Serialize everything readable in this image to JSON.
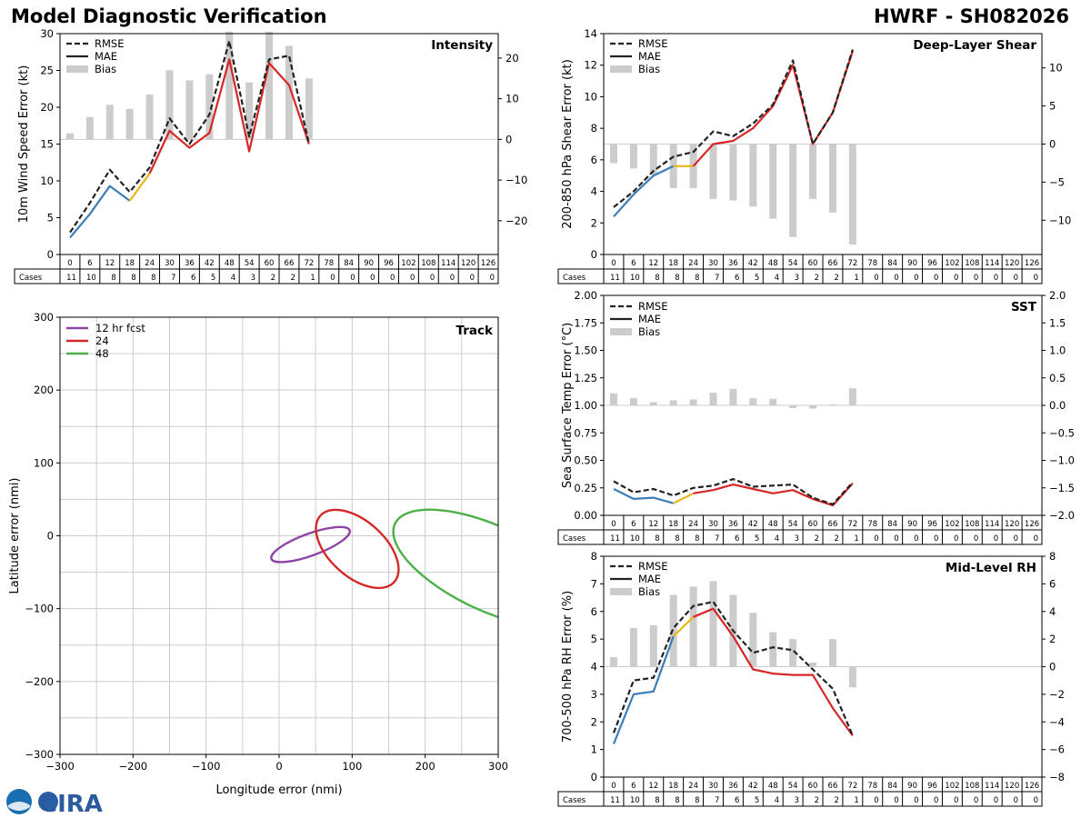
{
  "header": {
    "title_left": "Model Diagnostic Verification",
    "title_right": "HWRF - SH082026"
  },
  "logo": {
    "text": "CIRA",
    "agency": "NOAA"
  },
  "colors": {
    "rmse": "#222222",
    "bias": "#cccccc",
    "grid": "#cccccc",
    "seg_early": "#3a7db8",
    "seg_mid": "#e8b51a",
    "seg_late": "#d62728",
    "track_12": "#8e44a6",
    "track_24": "#d62728",
    "track_48": "#4daf4a"
  },
  "legend_labels": {
    "rmse": "RMSE",
    "mae": "MAE",
    "bias": "Bias"
  },
  "cases_label": "Cases",
  "chart_data": [
    {
      "id": "intensity",
      "type": "line",
      "title": "Intensity",
      "ylabel": "10m Wind Speed Error (kt)",
      "ylim": [
        0,
        30
      ],
      "yticks": [
        0,
        5,
        10,
        15,
        20,
        25,
        30
      ],
      "y2lim": [
        -28.3,
        26
      ],
      "y2ticks": [
        -20,
        -10,
        0,
        10,
        20
      ],
      "categories": [
        "0",
        "6",
        "12",
        "18",
        "24",
        "30",
        "36",
        "42",
        "48",
        "54",
        "60",
        "66",
        "72",
        "78",
        "84",
        "90",
        "96",
        "102",
        "108",
        "114",
        "120",
        "126"
      ],
      "cases": [
        11,
        10,
        8,
        8,
        8,
        7,
        6,
        5,
        4,
        3,
        2,
        2,
        1,
        0,
        0,
        0,
        0,
        0,
        0,
        0,
        0,
        0
      ],
      "rmse": [
        3.0,
        7.0,
        11.5,
        8.5,
        11.8,
        18.5,
        15.0,
        19.0,
        29.0,
        16.0,
        26.5,
        27.0,
        15.0
      ],
      "mae": [
        2.3,
        5.5,
        9.3,
        7.3,
        11.0,
        16.8,
        14.5,
        16.5,
        26.5,
        14.0,
        26.0,
        23.0,
        15.0
      ],
      "bias": [
        1.5,
        5.5,
        8.5,
        7.5,
        11.0,
        17.0,
        14.5,
        16.0,
        26.5,
        14.0,
        26.5,
        23.0,
        15.0
      ]
    },
    {
      "id": "shear",
      "type": "line",
      "title": "Deep-Layer Shear",
      "ylabel": "200-850 hPa Shear Error (kt)",
      "ylim": [
        0,
        14
      ],
      "yticks": [
        0,
        2,
        4,
        6,
        8,
        10,
        12,
        14
      ],
      "y2lim": [
        -14.5,
        14.5
      ],
      "y2ticks": [
        -10,
        -5,
        0,
        5,
        10
      ],
      "categories": [
        "0",
        "6",
        "12",
        "18",
        "24",
        "30",
        "36",
        "42",
        "48",
        "54",
        "60",
        "66",
        "72",
        "78",
        "84",
        "90",
        "96",
        "102",
        "108",
        "114",
        "120",
        "126"
      ],
      "cases": [
        11,
        10,
        8,
        8,
        8,
        7,
        6,
        5,
        4,
        3,
        2,
        2,
        1,
        0,
        0,
        0,
        0,
        0,
        0,
        0,
        0,
        0
      ],
      "rmse": [
        3.0,
        4.0,
        5.3,
        6.2,
        6.5,
        7.8,
        7.5,
        8.3,
        9.5,
        12.3,
        7.0,
        9.0,
        13.0
      ],
      "mae": [
        2.4,
        3.8,
        5.0,
        5.6,
        5.6,
        7.0,
        7.2,
        8.0,
        9.4,
        12.0,
        7.0,
        9.0,
        12.9
      ],
      "bias": [
        -2.5,
        -3.2,
        -4.0,
        -5.8,
        -5.8,
        -7.2,
        -7.4,
        -8.2,
        -9.8,
        -12.2,
        -7.2,
        -9.0,
        -13.2
      ]
    },
    {
      "id": "sst",
      "type": "line",
      "title": "SST",
      "ylabel": "Sea Surface Temp Error (°C)",
      "ylim": [
        0,
        2.0
      ],
      "yticks": [
        0.0,
        0.25,
        0.5,
        0.75,
        1.0,
        1.25,
        1.5,
        1.75,
        2.0
      ],
      "y2lim": [
        -2.0,
        2.0
      ],
      "y2ticks": [
        -2.0,
        -1.5,
        -1.0,
        -0.5,
        0.0,
        0.5,
        1.0,
        1.5,
        2.0
      ],
      "categories": [
        "0",
        "6",
        "12",
        "18",
        "24",
        "30",
        "36",
        "42",
        "48",
        "54",
        "60",
        "66",
        "72",
        "78",
        "84",
        "90",
        "96",
        "102",
        "108",
        "114",
        "120",
        "126"
      ],
      "cases": [
        11,
        10,
        8,
        8,
        8,
        7,
        6,
        5,
        4,
        3,
        2,
        2,
        1,
        0,
        0,
        0,
        0,
        0,
        0,
        0,
        0,
        0
      ],
      "rmse": [
        0.31,
        0.21,
        0.24,
        0.18,
        0.25,
        0.27,
        0.33,
        0.26,
        0.27,
        0.28,
        0.16,
        0.1,
        0.3
      ],
      "mae": [
        0.24,
        0.15,
        0.16,
        0.11,
        0.2,
        0.23,
        0.28,
        0.24,
        0.2,
        0.23,
        0.15,
        0.09,
        0.29
      ],
      "bias": [
        0.22,
        0.13,
        0.06,
        0.09,
        0.11,
        0.23,
        0.3,
        0.13,
        0.12,
        -0.05,
        -0.06,
        0.02,
        0.31
      ]
    },
    {
      "id": "rh",
      "type": "line",
      "title": "Mid-Level RH",
      "ylabel": "700-500 hPa RH Error (%)",
      "ylim": [
        0,
        8
      ],
      "yticks": [
        0,
        1,
        2,
        3,
        4,
        5,
        6,
        7,
        8
      ],
      "y2lim": [
        -8,
        8
      ],
      "y2ticks": [
        -8,
        -6,
        -4,
        -2,
        0,
        2,
        4,
        6,
        8
      ],
      "categories": [
        "0",
        "6",
        "12",
        "18",
        "24",
        "30",
        "36",
        "42",
        "48",
        "54",
        "60",
        "66",
        "72",
        "78",
        "84",
        "90",
        "96",
        "102",
        "108",
        "114",
        "120",
        "126"
      ],
      "cases": [
        11,
        10,
        8,
        8,
        8,
        7,
        6,
        5,
        4,
        3,
        2,
        2,
        1,
        0,
        0,
        0,
        0,
        0,
        0,
        0,
        0,
        0
      ],
      "rmse": [
        1.6,
        3.5,
        3.6,
        5.4,
        6.2,
        6.35,
        5.3,
        4.5,
        4.7,
        4.6,
        3.9,
        3.2,
        1.5
      ],
      "mae": [
        1.2,
        3.0,
        3.1,
        5.1,
        5.8,
        6.1,
        5.1,
        3.9,
        3.75,
        3.7,
        3.7,
        2.5,
        1.5
      ],
      "bias": [
        0.7,
        2.8,
        3.0,
        5.2,
        5.8,
        6.2,
        5.2,
        3.9,
        2.5,
        2.0,
        0.3,
        2.0,
        -1.5
      ]
    },
    {
      "id": "track",
      "type": "scatter",
      "title": "Track",
      "xlabel": "Longitude error (nmi)",
      "ylabel": "Latitude error (nmi)",
      "xlim": [
        -300,
        300
      ],
      "ylim": [
        -300,
        300
      ],
      "xticks": [
        -300,
        -200,
        -100,
        0,
        100,
        200,
        300
      ],
      "yticks": [
        -300,
        -200,
        -100,
        0,
        100,
        200,
        300
      ],
      "ellipses": [
        {
          "label": "12 hr fcst",
          "cx": 43,
          "cy": -12,
          "rx": 57,
          "ry": 15,
          "angle_deg": 20,
          "color_key": "track_12"
        },
        {
          "label": "24",
          "cx": 107,
          "cy": -18,
          "rx": 68,
          "ry": 38,
          "angle_deg": -42,
          "color_key": "track_24"
        },
        {
          "label": "48",
          "cx": 290,
          "cy": -45,
          "rx": 145,
          "ry": 58,
          "angle_deg": -25,
          "color_key": "track_48"
        }
      ]
    }
  ]
}
